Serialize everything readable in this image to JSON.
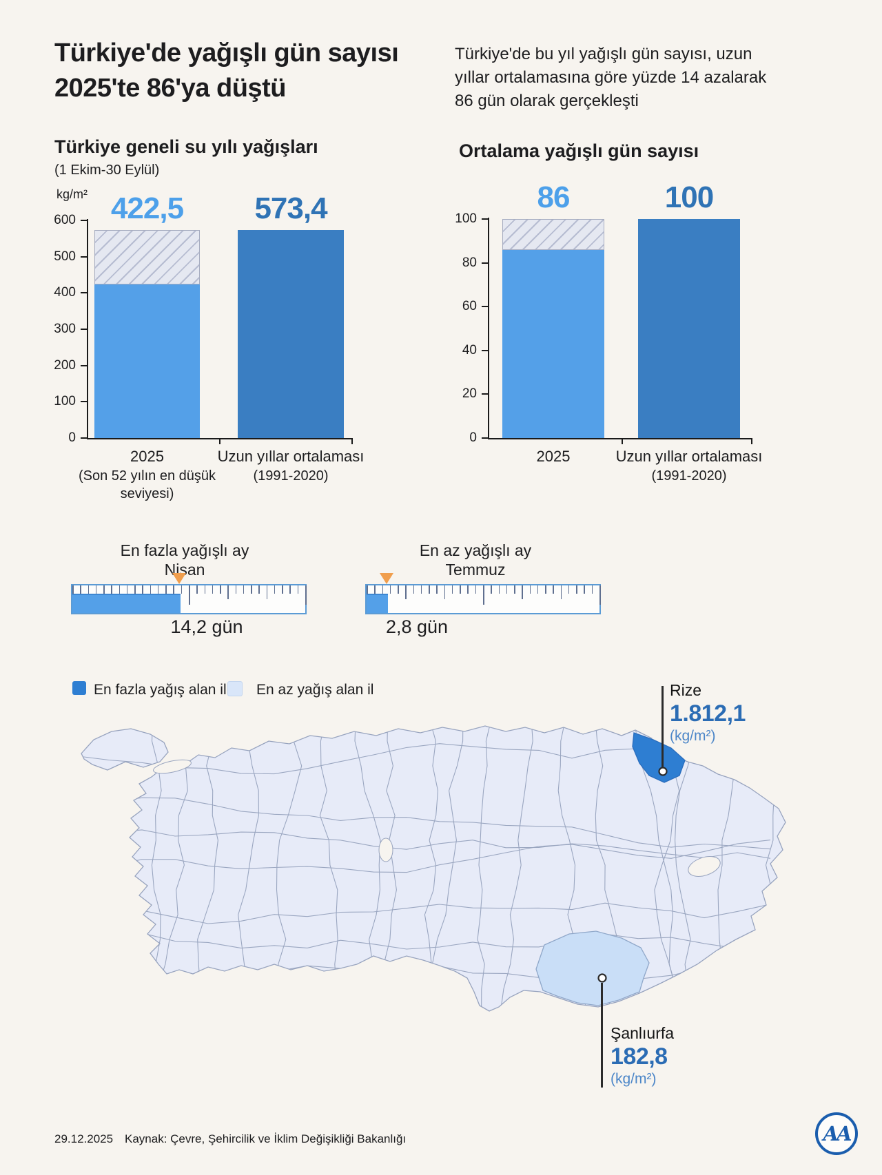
{
  "page": {
    "background": "#f7f4ef",
    "date": "29.12.2025",
    "source": "Kaynak: Çevre, Şehircilik ve İklim Değişikliği Bakanlığı",
    "logo_text": "AA"
  },
  "header": {
    "title_line1": "Türkiye'de yağışlı gün sayısı",
    "title_line2": "2025'te 86'ya düştü",
    "intro_lines": [
      "Türkiye'de bu yıl yağışlı gün sayısı, uzun",
      "yıllar ortalamasına göre yüzde 14 azalarak",
      "86 gün olarak gerçekleşti"
    ]
  },
  "chart_data": [
    {
      "type": "bar",
      "title": "Türkiye geneli su yılı yağışları",
      "subtitle": "(1 Ekim-30 Eylül)",
      "ylabel": "kg/m²",
      "categories": [
        "2025",
        "Uzun yıllar ortalaması"
      ],
      "category_notes": [
        [
          "(Son 52 yılın en düşük",
          "seviyesi)"
        ],
        [
          "(1991-2020)"
        ]
      ],
      "values": [
        422.5,
        573.4
      ],
      "value_labels": [
        "422,5",
        "573,4"
      ],
      "deficit_hatch_to": 573.4,
      "ylim": [
        0,
        600
      ],
      "yticks": [
        0,
        100,
        200,
        300,
        400,
        500,
        600
      ],
      "bar_colors": [
        "#54a0e8",
        "#3a7ec2"
      ],
      "value_label_colors": [
        "#4da0ea",
        "#2f73b5"
      ],
      "legend_position": "none",
      "grid": false
    },
    {
      "type": "bar",
      "title": "Ortalama yağışlı gün sayısı",
      "subtitle": "",
      "ylabel": "",
      "categories": [
        "2025",
        "Uzun yıllar ortalaması"
      ],
      "category_notes": [
        [
          ""
        ],
        [
          "(1991-2020)"
        ]
      ],
      "values": [
        86,
        100
      ],
      "value_labels": [
        "86",
        "100"
      ],
      "deficit_hatch_to": 100,
      "ylim": [
        0,
        100
      ],
      "yticks": [
        0,
        20,
        40,
        60,
        80,
        100
      ],
      "bar_colors": [
        "#54a0e8",
        "#3a7ec2"
      ],
      "value_label_colors": [
        "#4da0ea",
        "#2f73b5"
      ],
      "legend_position": "none",
      "grid": false
    }
  ],
  "rulers": [
    {
      "label": "En fazla yağışlı ay",
      "month": "Nisan",
      "value": 14.2,
      "max": 30.5,
      "value_label": "14,2 gün"
    },
    {
      "label": "En az yağışlı ay",
      "month": "Temmuz",
      "value": 2.8,
      "max": 30.5,
      "value_label": "2,8 gün"
    }
  ],
  "map": {
    "legend": [
      {
        "label": "En fazla yağış alan il",
        "color": "#2e7ed2"
      },
      {
        "label": "En az yağış alan il",
        "color": "#d9e6f9"
      }
    ],
    "callouts": [
      {
        "name": "Rize",
        "value": "1.812,1",
        "unit": "(kg/m²)"
      },
      {
        "name": "Şanlıurfa",
        "value": "182,8",
        "unit": "(kg/m²)"
      }
    ],
    "colors": {
      "land": "#e7ebf8",
      "border": "#97a3be",
      "highlight_max": "#2e7ed2",
      "highlight_min": "#c9def7"
    }
  }
}
